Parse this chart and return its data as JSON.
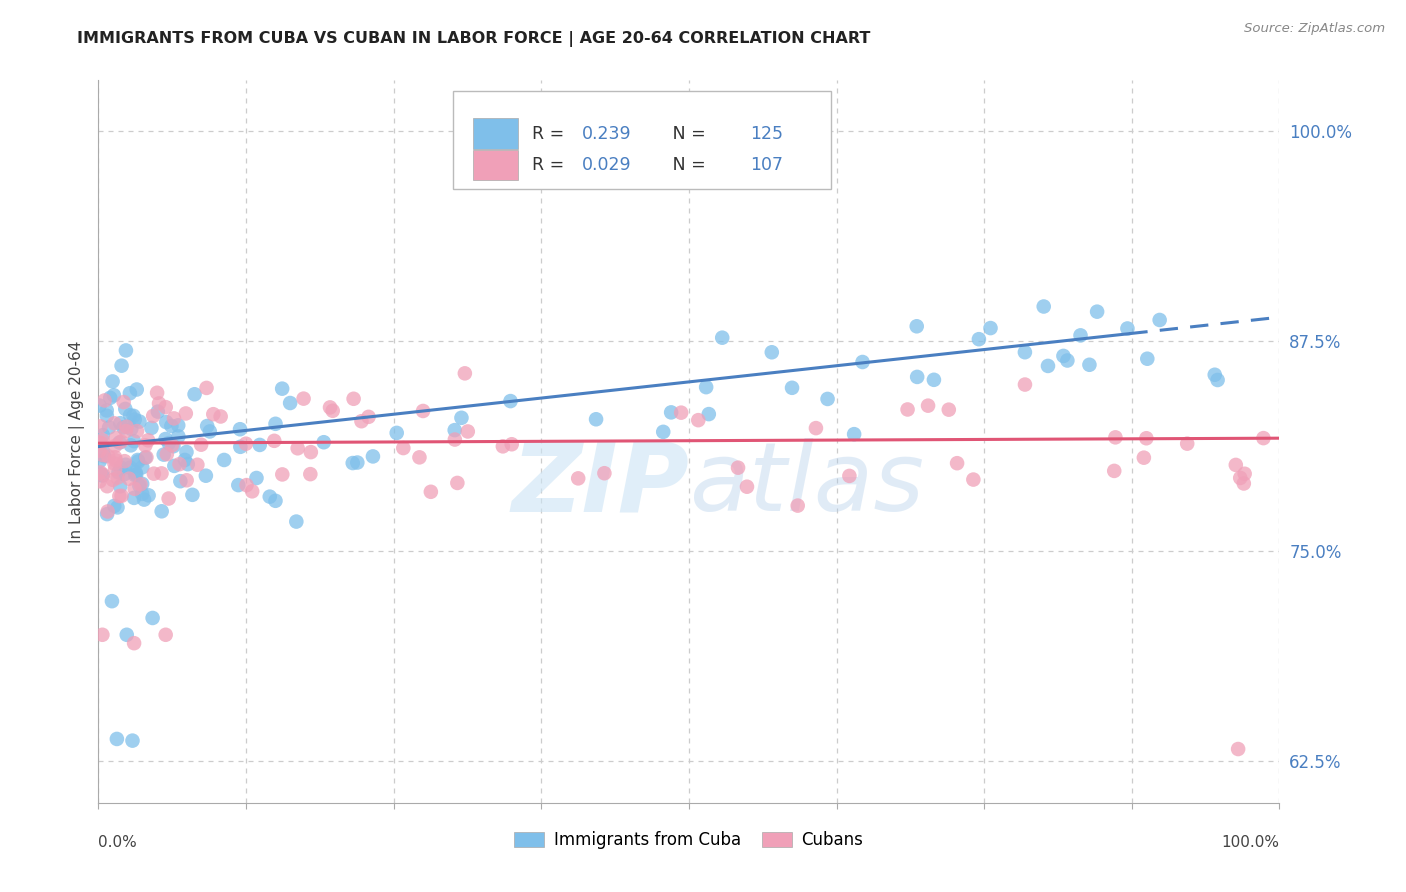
{
  "title": "IMMIGRANTS FROM CUBA VS CUBAN IN LABOR FORCE | AGE 20-64 CORRELATION CHART",
  "source": "Source: ZipAtlas.com",
  "ylabel": "In Labor Force | Age 20-64",
  "yticks": [
    0.625,
    0.75,
    0.875,
    1.0
  ],
  "ytick_labels": [
    "62.5%",
    "75.0%",
    "87.5%",
    "100.0%"
  ],
  "blue_R": 0.239,
  "blue_N": 125,
  "pink_R": 0.029,
  "pink_N": 107,
  "blue_color": "#7fbfea",
  "pink_color": "#f0a0b8",
  "blue_line_color": "#4a7fc1",
  "pink_line_color": "#e05575",
  "ytick_color": "#4a7fc1",
  "watermark_color": "#cce4f5",
  "bg_color": "#ffffff"
}
